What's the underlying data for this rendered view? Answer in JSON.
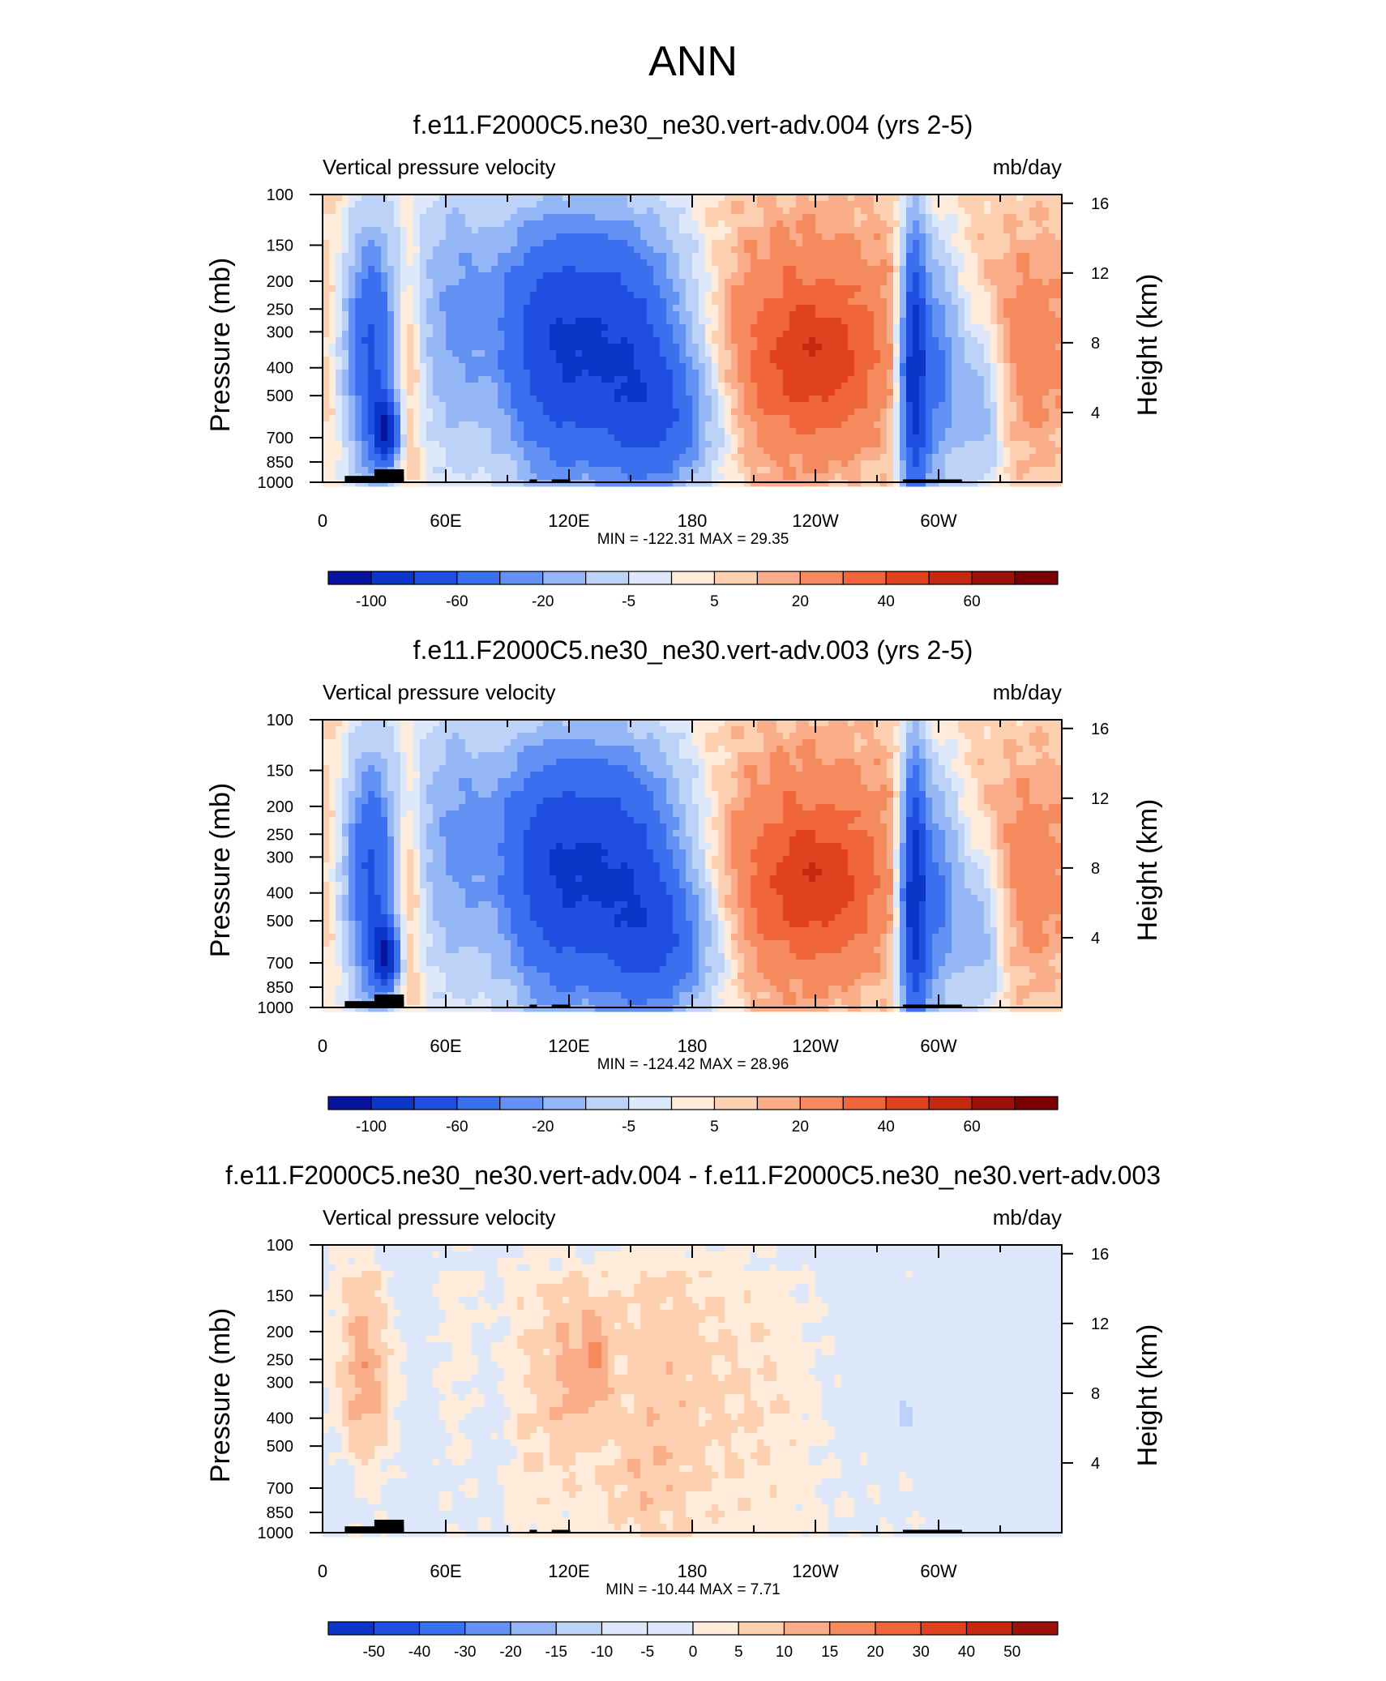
{
  "page_title": "ANN",
  "chart_data": [
    {
      "type": "contour",
      "title": "f.e11.F2000C5.ne30_ne30.vert-adv.004 (yrs 2-5)",
      "left_label": "Vertical pressure velocity",
      "right_label": "mb/day",
      "ylabel": "Pressure (mb)",
      "ylabel_right": "Height (km)",
      "x_ticks": [
        "0",
        "60E",
        "120E",
        "180",
        "120W",
        "60W"
      ],
      "y_ticks": [
        100,
        150,
        200,
        250,
        300,
        400,
        500,
        700,
        850,
        1000
      ],
      "y_right_ticks": [
        16,
        12,
        8,
        4
      ],
      "stats": "MIN = -122.31  MAX =  29.35",
      "colorbar": {
        "labels": [
          "-100",
          "-60",
          "-20",
          "-5",
          "5",
          "20",
          "40",
          "60"
        ],
        "colors": [
          "#08139e",
          "#0a35c7",
          "#1f4ee0",
          "#3a6fef",
          "#6492f4",
          "#94b6f5",
          "#bdd2f7",
          "#dde9fa",
          "#ffebd9",
          "#fdd0b2",
          "#f9ad88",
          "#f68a5f",
          "#f0653a",
          "#e0421f",
          "#c62912",
          "#9a1208",
          "#7a0003"
        ]
      },
      "variant": "full"
    },
    {
      "type": "contour",
      "title": "f.e11.F2000C5.ne30_ne30.vert-adv.003 (yrs 2-5)",
      "left_label": "Vertical pressure velocity",
      "right_label": "mb/day",
      "ylabel": "Pressure (mb)",
      "ylabel_right": "Height (km)",
      "x_ticks": [
        "0",
        "60E",
        "120E",
        "180",
        "120W",
        "60W"
      ],
      "y_ticks": [
        100,
        150,
        200,
        250,
        300,
        400,
        500,
        700,
        850,
        1000
      ],
      "y_right_ticks": [
        16,
        12,
        8,
        4
      ],
      "stats": "MIN = -124.42  MAX =  28.96",
      "colorbar": {
        "labels": [
          "-100",
          "-60",
          "-20",
          "-5",
          "5",
          "20",
          "40",
          "60"
        ],
        "colors": [
          "#08139e",
          "#0a35c7",
          "#1f4ee0",
          "#3a6fef",
          "#6492f4",
          "#94b6f5",
          "#bdd2f7",
          "#dde9fa",
          "#ffebd9",
          "#fdd0b2",
          "#f9ad88",
          "#f68a5f",
          "#f0653a",
          "#e0421f",
          "#c62912",
          "#9a1208",
          "#7a0003"
        ]
      },
      "variant": "full"
    },
    {
      "type": "contour",
      "title": "f.e11.F2000C5.ne30_ne30.vert-adv.004 - f.e11.F2000C5.ne30_ne30.vert-adv.003",
      "left_label": "Vertical pressure velocity",
      "right_label": "mb/day",
      "ylabel": "Pressure (mb)",
      "ylabel_right": "Height (km)",
      "x_ticks": [
        "0",
        "60E",
        "120E",
        "180",
        "120W",
        "60W"
      ],
      "y_ticks": [
        100,
        150,
        200,
        250,
        300,
        400,
        500,
        700,
        850,
        1000
      ],
      "y_right_ticks": [
        16,
        12,
        8,
        4
      ],
      "stats": "MIN = -10.44  MAX =   7.71",
      "colorbar": {
        "labels": [
          "-50",
          "-40",
          "-30",
          "-20",
          "-15",
          "-10",
          "-5",
          "0",
          "5",
          "10",
          "15",
          "20",
          "30",
          "40",
          "50"
        ],
        "colors": [
          "#0a35c7",
          "#1f4ee0",
          "#3a6fef",
          "#6492f4",
          "#94b6f5",
          "#bdd2f7",
          "#dde9fa",
          "#dde9fa",
          "#ffebd9",
          "#fdd0b2",
          "#f9ad88",
          "#f68a5f",
          "#f0653a",
          "#e0421f",
          "#c62912",
          "#9a1208"
        ]
      },
      "variant": "diff"
    }
  ]
}
